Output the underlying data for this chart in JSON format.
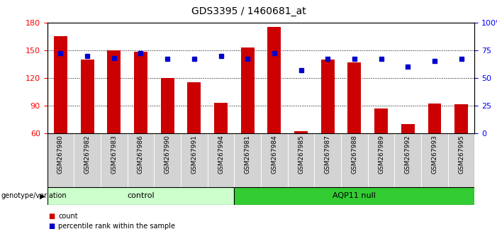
{
  "title": "GDS3395 / 1460681_at",
  "categories": [
    "GSM267980",
    "GSM267982",
    "GSM267983",
    "GSM267986",
    "GSM267990",
    "GSM267991",
    "GSM267994",
    "GSM267981",
    "GSM267984",
    "GSM267985",
    "GSM267987",
    "GSM267988",
    "GSM267989",
    "GSM267992",
    "GSM267993",
    "GSM267995"
  ],
  "bar_values": [
    165,
    140,
    150,
    148,
    120,
    115,
    93,
    153,
    175,
    62,
    140,
    137,
    87,
    70,
    92,
    91
  ],
  "dot_values_pct": [
    72,
    70,
    68,
    72,
    67,
    67,
    70,
    67,
    72,
    57,
    67,
    67,
    67,
    60,
    65,
    67
  ],
  "bar_color": "#cc0000",
  "dot_color": "#0000cc",
  "ylim_left": [
    60,
    180
  ],
  "ylim_right": [
    0,
    100
  ],
  "yticks_left": [
    60,
    90,
    120,
    150,
    180
  ],
  "yticks_right": [
    0,
    25,
    50,
    75,
    100
  ],
  "hgrid_lines": [
    90,
    120,
    150
  ],
  "n_control": 7,
  "control_label": "control",
  "aqp11_label": "AQP11 null",
  "control_color": "#ccffcc",
  "aqp11_color": "#33cc33",
  "xlabel_annot": "genotype/variation",
  "legend_count": "count",
  "legend_percentile": "percentile rank within the sample",
  "tick_bg_color": "#d3d3d3",
  "title_fontsize": 10,
  "axis_fontsize": 8,
  "label_fontsize": 8,
  "tick_label_fontsize": 6.5,
  "group_label_fontsize": 8
}
